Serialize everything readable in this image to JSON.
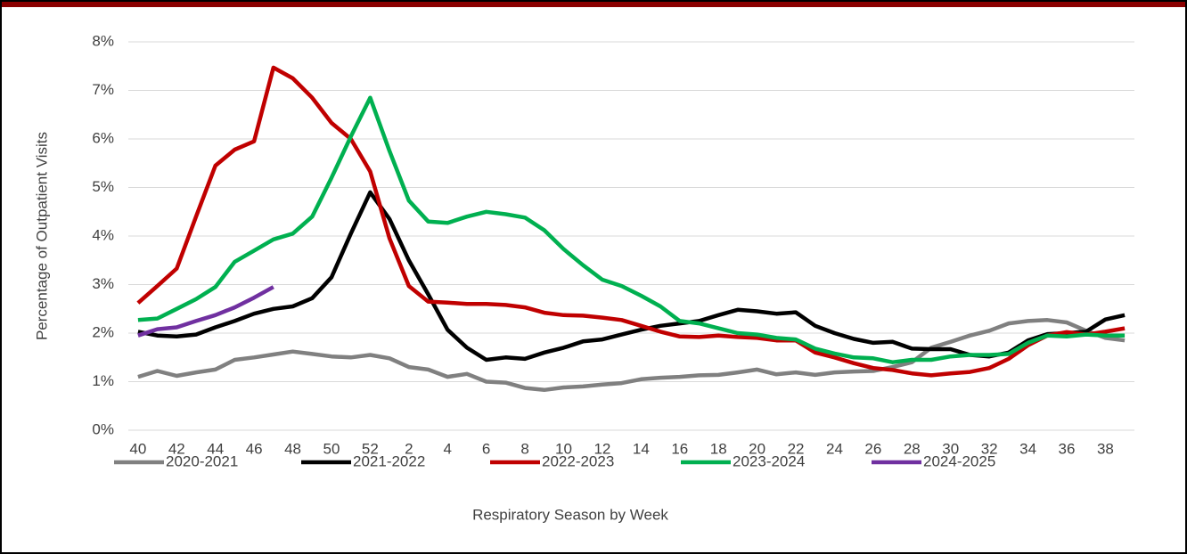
{
  "chart_data": {
    "type": "line",
    "ylabel": "Percentage of Outpatient Visits",
    "xlabel": "Respiratory Season by Week",
    "categories": [
      40,
      null,
      42,
      null,
      44,
      null,
      46,
      null,
      48,
      null,
      50,
      null,
      52,
      null,
      2,
      null,
      4,
      null,
      6,
      null,
      8,
      null,
      10,
      null,
      12,
      null,
      14,
      null,
      16,
      null,
      18,
      null,
      20,
      null,
      22,
      null,
      24,
      null,
      26,
      null,
      28,
      null,
      30,
      null,
      32,
      null,
      34,
      null,
      36,
      null,
      38,
      null
    ],
    "ylim": [
      0,
      8
    ],
    "yticks": [
      {
        "value": 0,
        "label": "0%"
      },
      {
        "value": 1,
        "label": "1%"
      },
      {
        "value": 2,
        "label": "2%"
      },
      {
        "value": 3,
        "label": "3%"
      },
      {
        "value": 4,
        "label": "4%"
      },
      {
        "value": 5,
        "label": "5%"
      },
      {
        "value": 6,
        "label": "6%"
      },
      {
        "value": 7,
        "label": "7%"
      },
      {
        "value": 8,
        "label": "8%"
      }
    ],
    "grid": true,
    "legend": "bottom",
    "series": [
      {
        "name": "2020-2021",
        "color": "#808080",
        "values": [
          1.1,
          1.22,
          1.12,
          1.19,
          1.25,
          1.45,
          1.5,
          1.56,
          1.62,
          1.57,
          1.52,
          1.5,
          1.55,
          1.48,
          1.3,
          1.25,
          1.1,
          1.16,
          1.0,
          0.98,
          0.87,
          0.83,
          0.88,
          0.9,
          0.94,
          0.97,
          1.05,
          1.08,
          1.1,
          1.13,
          1.14,
          1.19,
          1.25,
          1.15,
          1.19,
          1.14,
          1.19,
          1.21,
          1.22,
          1.3,
          1.4,
          1.7,
          1.82,
          1.95,
          2.05,
          2.2,
          2.25,
          2.27,
          2.22,
          2.05,
          1.9,
          1.85
        ]
      },
      {
        "name": "2021-2022",
        "color": "#000000",
        "values": [
          2.03,
          1.95,
          1.93,
          1.97,
          2.12,
          2.25,
          2.4,
          2.5,
          2.55,
          2.72,
          3.15,
          4.05,
          4.9,
          4.35,
          3.5,
          2.8,
          2.07,
          1.7,
          1.45,
          1.5,
          1.47,
          1.6,
          1.7,
          1.83,
          1.87,
          1.97,
          2.07,
          2.15,
          2.2,
          2.25,
          2.37,
          2.48,
          2.45,
          2.4,
          2.43,
          2.15,
          2.0,
          1.88,
          1.8,
          1.82,
          1.68,
          1.67,
          1.67,
          1.55,
          1.52,
          1.6,
          1.85,
          1.98,
          2.0,
          2.03,
          2.28,
          2.37
        ]
      },
      {
        "name": "2022-2023",
        "color": "#c00000",
        "values": [
          2.62,
          2.97,
          3.33,
          4.4,
          5.45,
          5.78,
          5.95,
          7.47,
          7.25,
          6.85,
          6.33,
          6.0,
          5.33,
          3.95,
          2.97,
          2.65,
          2.63,
          2.6,
          2.6,
          2.58,
          2.53,
          2.42,
          2.37,
          2.36,
          2.32,
          2.27,
          2.15,
          2.03,
          1.93,
          1.92,
          1.95,
          1.92,
          1.9,
          1.85,
          1.85,
          1.6,
          1.5,
          1.38,
          1.28,
          1.24,
          1.17,
          1.13,
          1.17,
          1.2,
          1.28,
          1.47,
          1.75,
          1.95,
          2.02,
          1.97,
          2.03,
          2.1
        ]
      },
      {
        "name": "2023-2024",
        "color": "#00b050",
        "values": [
          2.27,
          2.3,
          2.5,
          2.7,
          2.95,
          3.47,
          3.7,
          3.93,
          4.05,
          4.4,
          5.2,
          6.05,
          6.85,
          5.75,
          4.73,
          4.3,
          4.27,
          4.4,
          4.5,
          4.45,
          4.38,
          4.12,
          3.73,
          3.4,
          3.1,
          2.97,
          2.77,
          2.55,
          2.25,
          2.2,
          2.1,
          2.0,
          1.97,
          1.9,
          1.87,
          1.68,
          1.58,
          1.5,
          1.48,
          1.4,
          1.45,
          1.45,
          1.52,
          1.55,
          1.55,
          1.57,
          1.8,
          1.95,
          1.93,
          1.97,
          1.95,
          1.95
        ]
      },
      {
        "name": "2024-2025",
        "color": "#7030a0",
        "values": [
          1.95,
          2.08,
          2.12,
          2.25,
          2.37,
          2.53,
          2.73,
          2.95,
          null,
          null,
          null,
          null,
          null,
          null,
          null,
          null,
          null,
          null,
          null,
          null,
          null,
          null,
          null,
          null,
          null,
          null,
          null,
          null,
          null,
          null,
          null,
          null,
          null,
          null,
          null,
          null,
          null,
          null,
          null,
          null,
          null,
          null,
          null,
          null,
          null,
          null,
          null,
          null,
          null,
          null,
          null,
          null
        ]
      }
    ]
  }
}
